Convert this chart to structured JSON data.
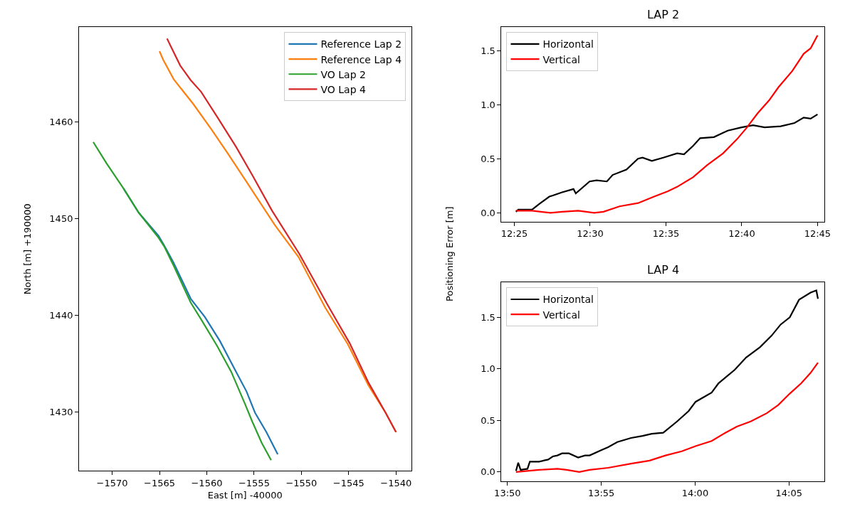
{
  "chart_data": [
    {
      "type": "line",
      "xlabel": "East [m] -40000",
      "ylabel": "North [m] +190000",
      "xlim": [
        -1573.5,
        -1538.4
      ],
      "ylim": [
        1423.9,
        1469.8
      ],
      "xticks": [
        -1570,
        -1565,
        -1560,
        -1555,
        -1550,
        -1545,
        -1540
      ],
      "yticks": [
        1430,
        1440,
        1450,
        1460
      ],
      "legend": "top right",
      "series": [
        {
          "name": "Reference Lap 2",
          "color": "#1f77b4",
          "x": [
            -1568.8,
            -1567.2,
            -1565.1,
            -1564.5,
            -1563.5,
            -1561.7,
            -1560.2,
            -1558.6,
            -1557.1,
            -1555.8,
            -1554.9,
            -1553.7,
            -1552.5
          ],
          "values": [
            1453.1,
            1450.6,
            1448.2,
            1447.2,
            1445.4,
            1441.7,
            1439.8,
            1437.3,
            1434.5,
            1432.1,
            1429.9,
            1427.9,
            1425.6
          ]
        },
        {
          "name": "Reference Lap 4",
          "color": "#ff7f0e",
          "x": [
            -1565.0,
            -1564.6,
            -1563.5,
            -1561.4,
            -1559.5,
            -1557.7,
            -1555.2,
            -1552.8,
            -1550.3,
            -1547.5,
            -1545.1,
            -1542.9,
            -1541.1,
            -1540.0
          ],
          "values": [
            1467.3,
            1466.4,
            1464.4,
            1461.8,
            1459.2,
            1456.6,
            1452.9,
            1449.3,
            1446.0,
            1440.8,
            1437.0,
            1432.7,
            1429.9,
            1427.9
          ]
        },
        {
          "name": "VO Lap 2",
          "color": "#2ca02c",
          "x": [
            -1572.0,
            -1570.6,
            -1568.8,
            -1567.2,
            -1565.1,
            -1564.5,
            -1563.5,
            -1561.7,
            -1560.5,
            -1558.9,
            -1557.4,
            -1556.0,
            -1555.2,
            -1554.2,
            -1553.2
          ],
          "values": [
            1457.9,
            1455.7,
            1453.1,
            1450.6,
            1448.0,
            1447.1,
            1445.1,
            1441.3,
            1439.4,
            1436.8,
            1434.1,
            1430.9,
            1429.0,
            1426.8,
            1425.0
          ]
        },
        {
          "name": "VO Lap 4",
          "color": "#d62728",
          "x": [
            -1564.2,
            -1563.8,
            -1562.8,
            -1561.7,
            -1560.6,
            -1558.9,
            -1556.9,
            -1555.2,
            -1553.1,
            -1550.2,
            -1547.2,
            -1544.9,
            -1542.9,
            -1541.1,
            -1540.0
          ],
          "values": [
            1468.6,
            1467.8,
            1465.8,
            1464.3,
            1463.1,
            1460.5,
            1457.4,
            1454.5,
            1450.8,
            1446.3,
            1441.0,
            1437.1,
            1433.0,
            1429.9,
            1427.9
          ]
        }
      ]
    },
    {
      "type": "line",
      "title": "LAP 2",
      "ylabel": "Positioning Error [m]",
      "xlim": [
        12.4025,
        12.7575
      ],
      "ylim": [
        -0.081,
        1.717
      ],
      "xticks": [
        {
          "value": 12.41667,
          "label": "12:25"
        },
        {
          "value": 12.5,
          "label": "12:30"
        },
        {
          "value": 12.58333,
          "label": "12:35"
        },
        {
          "value": 12.66667,
          "label": "12:40"
        },
        {
          "value": 12.75,
          "label": "12:45"
        }
      ],
      "yticks": [
        {
          "value": 0,
          "label": "0.0"
        },
        {
          "value": 0.5,
          "label": "0.5"
        },
        {
          "value": 1,
          "label": "1.0"
        },
        {
          "value": 1.5,
          "label": "1.5"
        }
      ],
      "legend": "top left",
      "series": [
        {
          "name": "Horizontal",
          "color": "#000000",
          "x": [
            12.4184,
            12.421,
            12.4361,
            12.4438,
            12.4551,
            12.4589,
            12.4691,
            12.4817,
            12.4842,
            12.4994,
            12.507,
            12.5184,
            12.5247,
            12.5399,
            12.5526,
            12.5576,
            12.5678,
            12.5804,
            12.5956,
            12.6032,
            12.6133,
            12.6209,
            12.6361,
            12.6462,
            12.6513,
            12.6665,
            12.6791,
            12.6918,
            12.7095,
            12.7247,
            12.7348,
            12.7424,
            12.75
          ],
          "values": [
            0.01,
            0.03,
            0.03,
            0.08,
            0.15,
            0.16,
            0.19,
            0.22,
            0.18,
            0.29,
            0.3,
            0.29,
            0.35,
            0.4,
            0.5,
            0.51,
            0.48,
            0.51,
            0.55,
            0.54,
            0.62,
            0.69,
            0.7,
            0.74,
            0.76,
            0.79,
            0.81,
            0.79,
            0.8,
            0.83,
            0.88,
            0.87,
            0.91
          ]
        },
        {
          "name": "Vertical",
          "color": "#ff0000",
          "x": [
            12.4184,
            12.4361,
            12.4564,
            12.4691,
            12.4868,
            12.5044,
            12.5146,
            12.5323,
            12.5526,
            12.5703,
            12.5855,
            12.5956,
            12.6133,
            12.6285,
            12.6462,
            12.6614,
            12.6715,
            12.6842,
            12.6968,
            12.707,
            12.7222,
            12.7348,
            12.7424,
            12.75
          ],
          "values": [
            0.02,
            0.02,
            0.0,
            0.01,
            0.02,
            0.0,
            0.01,
            0.06,
            0.09,
            0.15,
            0.2,
            0.24,
            0.33,
            0.44,
            0.55,
            0.68,
            0.78,
            0.92,
            1.04,
            1.16,
            1.31,
            1.47,
            1.52,
            1.64
          ]
        }
      ]
    },
    {
      "type": "line",
      "title": "LAP 4",
      "xlim": [
        13.828,
        14.1148
      ],
      "ylim": [
        -0.089,
        1.839
      ],
      "xticks": [
        {
          "value": 13.83333,
          "label": "13:50"
        },
        {
          "value": 13.91667,
          "label": "13:55"
        },
        {
          "value": 14.0,
          "label": "14:00"
        },
        {
          "value": 14.08333,
          "label": "14:05"
        }
      ],
      "yticks": [
        {
          "value": 0,
          "label": "0.0"
        },
        {
          "value": 0.5,
          "label": "0.5"
        },
        {
          "value": 1,
          "label": "1.0"
        },
        {
          "value": 1.5,
          "label": "1.5"
        }
      ],
      "legend": "top left",
      "series": [
        {
          "name": "Horizontal",
          "color": "#000000",
          "x": [
            13.8409,
            13.8429,
            13.845,
            13.8511,
            13.8532,
            13.8613,
            13.8695,
            13.8736,
            13.8777,
            13.8818,
            13.8879,
            13.8961,
            13.9022,
            13.9063,
            13.9165,
            13.9227,
            13.9309,
            13.9431,
            13.9533,
            13.9615,
            13.9717,
            13.984,
            13.9942,
            14.0004,
            14.0147,
            14.0208,
            14.0351,
            14.0453,
            14.0576,
            14.0678,
            14.076,
            14.0841,
            14.0923,
            14.1026,
            14.1077,
            14.1091
          ],
          "values": [
            0.01,
            0.09,
            0.02,
            0.03,
            0.1,
            0.1,
            0.12,
            0.15,
            0.16,
            0.18,
            0.18,
            0.14,
            0.16,
            0.16,
            0.21,
            0.24,
            0.29,
            0.33,
            0.35,
            0.37,
            0.38,
            0.49,
            0.59,
            0.68,
            0.77,
            0.86,
            0.99,
            1.11,
            1.21,
            1.32,
            1.43,
            1.5,
            1.67,
            1.74,
            1.76,
            1.68
          ]
        },
        {
          "name": "Vertical",
          "color": "#ff0000",
          "x": [
            13.8409,
            13.8613,
            13.8777,
            13.8859,
            13.8971,
            13.9063,
            13.9227,
            13.9431,
            13.9595,
            13.9737,
            13.9881,
            14.0004,
            14.0147,
            14.0269,
            14.0371,
            14.0494,
            14.0637,
            14.0739,
            14.0841,
            14.0943,
            14.1025,
            14.1091
          ],
          "values": [
            0.0,
            0.02,
            0.03,
            0.02,
            0.0,
            0.02,
            0.04,
            0.08,
            0.11,
            0.16,
            0.2,
            0.25,
            0.3,
            0.38,
            0.44,
            0.49,
            0.57,
            0.65,
            0.76,
            0.86,
            0.96,
            1.06
          ]
        }
      ]
    }
  ]
}
